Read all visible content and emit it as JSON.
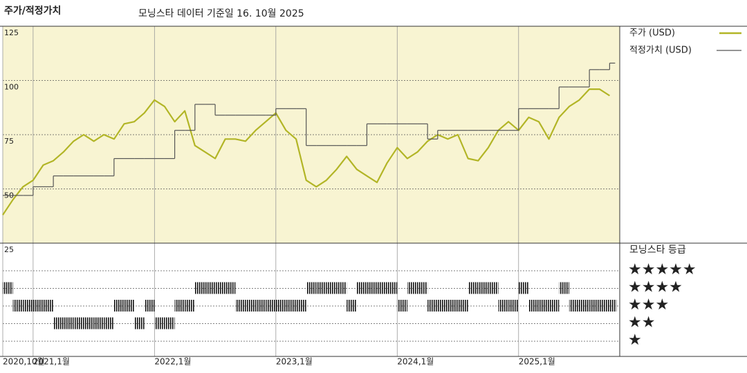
{
  "chart_data": [
    {
      "type": "line",
      "title": "주가/적정가치",
      "subtitle": "모닝스타 데이터 기준일 16. 10월 2025",
      "x": [
        "2020-10",
        "2020-11",
        "2020-12",
        "2021-01",
        "2021-02",
        "2021-03",
        "2021-04",
        "2021-05",
        "2021-06",
        "2021-07",
        "2021-08",
        "2021-09",
        "2021-10",
        "2021-11",
        "2021-12",
        "2022-01",
        "2022-02",
        "2022-03",
        "2022-04",
        "2022-05",
        "2022-06",
        "2022-07",
        "2022-08",
        "2022-09",
        "2022-10",
        "2022-11",
        "2022-12",
        "2023-01",
        "2023-02",
        "2023-03",
        "2023-04",
        "2023-05",
        "2023-06",
        "2023-07",
        "2023-08",
        "2023-09",
        "2023-10",
        "2023-11",
        "2023-12",
        "2024-01",
        "2024-02",
        "2024-03",
        "2024-04",
        "2024-05",
        "2024-06",
        "2024-07",
        "2024-08",
        "2024-09",
        "2024-10",
        "2024-11",
        "2024-12",
        "2025-01",
        "2025-02",
        "2025-03",
        "2025-04",
        "2025-05",
        "2025-06",
        "2025-07",
        "2025-08",
        "2025-09",
        "2025-10"
      ],
      "series": [
        {
          "name": "주가 (USD)",
          "color": "#b2b526",
          "values": [
            38,
            45,
            51,
            54,
            61,
            63,
            67,
            72,
            75,
            72,
            75,
            73,
            80,
            81,
            85,
            91,
            88,
            81,
            86,
            70,
            67,
            64,
            73,
            73,
            72,
            77,
            81,
            85,
            77,
            73,
            54,
            51,
            54,
            59,
            65,
            59,
            56,
            53,
            62,
            69,
            64,
            67,
            72,
            75,
            73,
            75,
            64,
            63,
            69,
            77,
            81,
            77,
            83,
            81,
            73,
            83,
            88,
            91,
            96,
            96,
            93
          ]
        },
        {
          "name": "적정가치 (USD)",
          "color": "#555555",
          "step": true,
          "values": [
            47,
            47,
            47,
            51,
            51,
            56,
            56,
            56,
            56,
            56,
            56,
            64,
            64,
            64,
            64,
            64,
            64,
            77,
            77,
            89,
            89,
            84,
            84,
            84,
            84,
            84,
            84,
            87,
            87,
            87,
            70,
            70,
            70,
            70,
            70,
            70,
            80,
            80,
            80,
            80,
            80,
            80,
            73,
            77,
            77,
            77,
            77,
            77,
            77,
            77,
            77,
            87,
            87,
            87,
            87,
            97,
            97,
            97,
            105,
            105,
            108
          ]
        }
      ],
      "xlim": [
        "2020-10",
        "2025-11"
      ],
      "ylim": [
        25,
        125
      ],
      "yticks": [
        25,
        50,
        75,
        100,
        125
      ],
      "grid": true,
      "background": "#f8f4d2"
    },
    {
      "type": "strip",
      "title": "모닝스타 등급",
      "x": [
        "2020-10",
        "2020-11",
        "2020-12",
        "2021-01",
        "2021-02",
        "2021-03",
        "2021-04",
        "2021-05",
        "2021-06",
        "2021-07",
        "2021-08",
        "2021-09",
        "2021-10",
        "2021-11",
        "2021-12",
        "2022-01",
        "2022-02",
        "2022-03",
        "2022-04",
        "2022-05",
        "2022-06",
        "2022-07",
        "2022-08",
        "2022-09",
        "2022-10",
        "2022-11",
        "2022-12",
        "2023-01",
        "2023-02",
        "2023-03",
        "2023-04",
        "2023-05",
        "2023-06",
        "2023-07",
        "2023-08",
        "2023-09",
        "2023-10",
        "2023-11",
        "2023-12",
        "2024-01",
        "2024-02",
        "2024-03",
        "2024-04",
        "2024-05",
        "2024-06",
        "2024-07",
        "2024-08",
        "2024-09",
        "2024-10",
        "2024-11",
        "2024-12",
        "2025-01",
        "2025-02",
        "2025-03",
        "2025-04",
        "2025-05",
        "2025-06",
        "2025-07",
        "2025-08",
        "2025-09",
        "2025-10"
      ],
      "values": [
        4,
        3,
        3,
        3,
        3,
        2,
        2,
        2,
        2,
        2,
        2,
        3,
        3,
        2,
        3,
        2,
        2,
        3,
        3,
        4,
        4,
        4,
        4,
        3,
        3,
        3,
        3,
        3,
        3,
        3,
        4,
        4,
        4,
        4,
        3,
        4,
        4,
        4,
        4,
        3,
        4,
        4,
        3,
        3,
        3,
        3,
        4,
        4,
        4,
        3,
        3,
        4,
        3,
        3,
        3,
        4,
        3,
        3,
        3,
        3,
        3
      ],
      "xlim": [
        "2020-10",
        "2025-11"
      ],
      "xticks": [
        {
          "value": "2020-10",
          "label": "2020,10월"
        },
        {
          "value": "2021-01",
          "label": "2021,1월"
        },
        {
          "value": "2022-01",
          "label": "2022,1월"
        },
        {
          "value": "2023-01",
          "label": "2023,1월"
        },
        {
          "value": "2024-01",
          "label": "2024,1월"
        },
        {
          "value": "2025-01",
          "label": "2025,1월"
        }
      ],
      "yticks": [
        {
          "value": 5,
          "label": "★★★★★"
        },
        {
          "value": 4,
          "label": "★★★★"
        },
        {
          "value": 3,
          "label": "★★★"
        },
        {
          "value": 2,
          "label": "★★"
        },
        {
          "value": 1,
          "label": "★"
        }
      ],
      "color": "#111111"
    }
  ]
}
